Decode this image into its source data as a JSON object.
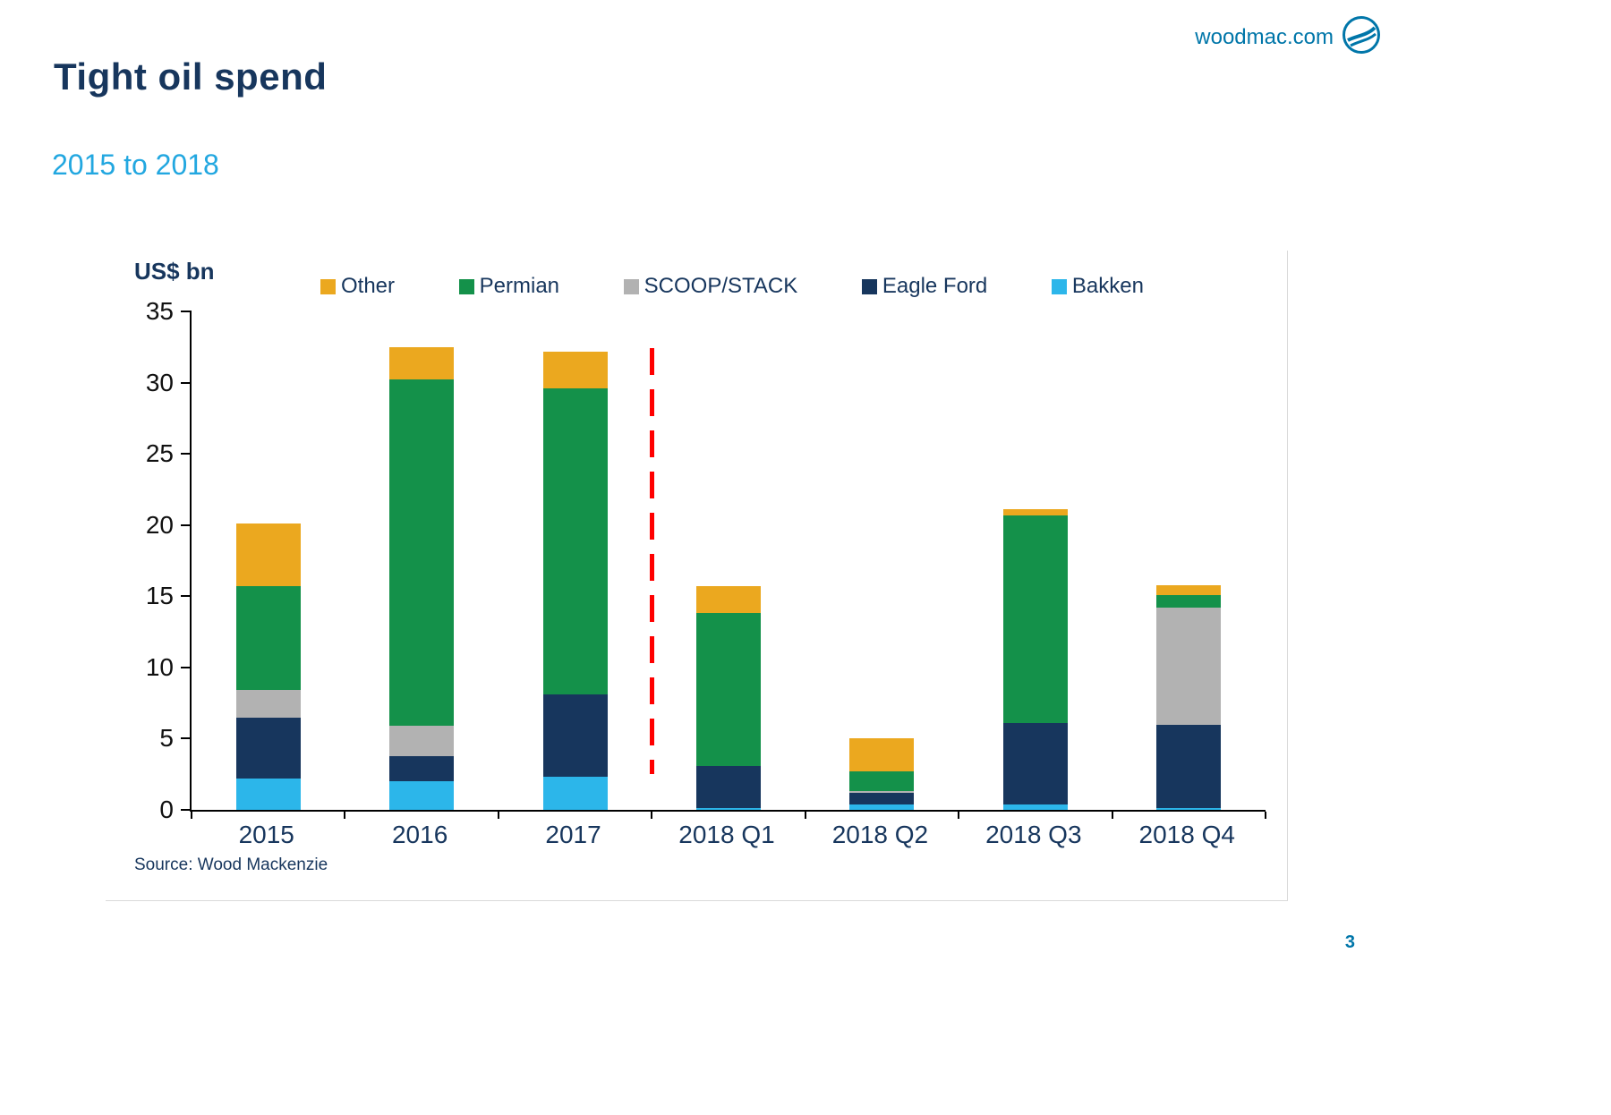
{
  "header": {
    "title": "Tight oil spend",
    "subtitle": "2015 to 2018",
    "site": "woodmac.com"
  },
  "footer": {
    "source": "Source: Wood Mackenzie",
    "page_number": "3"
  },
  "icons": {
    "logo": "woodmac-globe-logo"
  },
  "colors": {
    "title_navy": "#17365d",
    "subtitle_blue": "#22a7e0",
    "link_blue": "#0076a9",
    "forecast_line_red": "#ff0000"
  },
  "chart_data": {
    "type": "bar",
    "stacked": true,
    "title": "",
    "xlabel": "",
    "ylabel": "US$ bn",
    "ylim": [
      0,
      35
    ],
    "yticks": [
      0,
      5,
      10,
      15,
      20,
      25,
      30,
      35
    ],
    "grid": false,
    "legend_position": "top",
    "legend_order": [
      "Other",
      "Permian",
      "SCOOP/STACK",
      "Eagle Ford",
      "Bakken"
    ],
    "categories": [
      "2015",
      "2016",
      "2017",
      "2018 Q1",
      "2018 Q2",
      "2018 Q3",
      "2018 Q4"
    ],
    "series": [
      {
        "name": "Bakken",
        "color": "#2cb6ea",
        "values": [
          2.2,
          2.0,
          2.3,
          0.1,
          0.4,
          0.4,
          0.1
        ]
      },
      {
        "name": "Eagle Ford",
        "color": "#17365d",
        "values": [
          4.3,
          1.8,
          5.8,
          3.0,
          0.8,
          5.7,
          5.9
        ]
      },
      {
        "name": "SCOOP/STACK",
        "color": "#b2b2b2",
        "values": [
          1.9,
          2.1,
          0.0,
          0.0,
          0.1,
          0.0,
          8.2
        ]
      },
      {
        "name": "Permian",
        "color": "#14914a",
        "values": [
          7.3,
          24.3,
          21.5,
          10.7,
          1.4,
          14.6,
          0.9
        ]
      },
      {
        "name": "Other",
        "color": "#eba81f",
        "values": [
          4.4,
          2.3,
          2.6,
          1.9,
          2.3,
          0.4,
          0.7
        ]
      }
    ],
    "totals": [
      20.1,
      32.5,
      32.2,
      15.7,
      5.0,
      21.1,
      15.8
    ],
    "annotations": [
      {
        "type": "vline",
        "style": "dashed",
        "color": "#ff0000",
        "x_between": [
          "2017",
          "2018 Q1"
        ],
        "y_from": 2.5,
        "y_to": 32.4,
        "meaning": "history-forecast divider"
      }
    ]
  }
}
